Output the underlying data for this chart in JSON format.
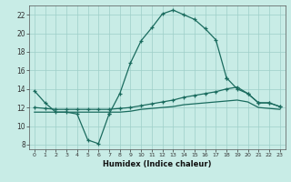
{
  "xlabel": "Humidex (Indice chaleur)",
  "xlim": [
    -0.5,
    23.5
  ],
  "ylim": [
    7.5,
    23.0
  ],
  "yticks": [
    8,
    10,
    12,
    14,
    16,
    18,
    20,
    22
  ],
  "xticks": [
    0,
    1,
    2,
    3,
    4,
    5,
    6,
    7,
    8,
    9,
    10,
    11,
    12,
    13,
    14,
    15,
    16,
    17,
    18,
    19,
    20,
    21,
    22,
    23
  ],
  "bg_color": "#c8ece6",
  "grid_color": "#9ecfc8",
  "line_color": "#1a6b5e",
  "line1_x": [
    0,
    1,
    2,
    3,
    4,
    5,
    6,
    7
  ],
  "line1_y": [
    13.8,
    12.5,
    11.5,
    11.5,
    11.3,
    8.5,
    8.1,
    11.3
  ],
  "line2_x": [
    7,
    8,
    9,
    10,
    11,
    12,
    13,
    14,
    15,
    16,
    17,
    18
  ],
  "line2_y": [
    11.3,
    13.5,
    16.8,
    19.2,
    20.6,
    22.1,
    22.5,
    22.0,
    21.5,
    20.5,
    19.3,
    15.2
  ],
  "line3_x": [
    18,
    19,
    20,
    21,
    22,
    23
  ],
  "line3_y": [
    15.2,
    14.0,
    13.5,
    12.5,
    12.5,
    12.1
  ],
  "line4_x": [
    0,
    1,
    2,
    3,
    4,
    5,
    6,
    7,
    8,
    9,
    10,
    11,
    12,
    13,
    14,
    15,
    16,
    17,
    18,
    19,
    20,
    21,
    22,
    23
  ],
  "line4_y": [
    12.0,
    11.9,
    11.8,
    11.8,
    11.8,
    11.8,
    11.8,
    11.8,
    11.9,
    12.0,
    12.2,
    12.4,
    12.6,
    12.8,
    13.1,
    13.3,
    13.5,
    13.7,
    14.0,
    14.2,
    13.5,
    12.5,
    12.5,
    12.1
  ],
  "line5_x": [
    0,
    1,
    2,
    3,
    4,
    5,
    6,
    7,
    8,
    9,
    10,
    11,
    12,
    13,
    14,
    15,
    16,
    17,
    18,
    19,
    20,
    21,
    22,
    23
  ],
  "line5_y": [
    11.5,
    11.5,
    11.5,
    11.5,
    11.5,
    11.5,
    11.5,
    11.5,
    11.5,
    11.6,
    11.8,
    11.9,
    12.0,
    12.1,
    12.3,
    12.4,
    12.5,
    12.6,
    12.7,
    12.8,
    12.6,
    12.0,
    11.9,
    11.8
  ]
}
